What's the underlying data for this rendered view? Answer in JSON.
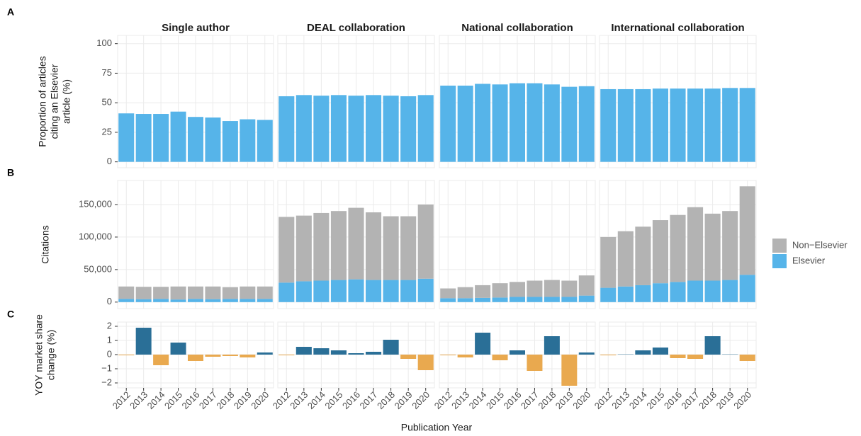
{
  "chart_data": [
    {
      "type": "bar",
      "panel_label": "A",
      "ylabel": [
        "Proportion of articles",
        "citing an Elsevier",
        "article (%)"
      ],
      "facet_titles": [
        "Single author",
        "DEAL collaboration",
        "National collaboration",
        "International collaboration"
      ],
      "categories": [
        "2012",
        "2013",
        "2014",
        "2015",
        "2016",
        "2017",
        "2018",
        "2019",
        "2020"
      ],
      "ylim": [
        -5,
        107
      ],
      "yticks": [
        0,
        25,
        50,
        75,
        100
      ],
      "grid": true,
      "color": "#56b4e9",
      "facets": [
        [
          41,
          40.5,
          40.5,
          42.5,
          38,
          37.5,
          34.5,
          36,
          35.5
        ],
        [
          55.5,
          56.5,
          56,
          56.5,
          56,
          56.5,
          56,
          55.5,
          56.5
        ],
        [
          64.5,
          64.5,
          66,
          65.5,
          66.5,
          66.5,
          65.5,
          63.5,
          64
        ],
        [
          61.5,
          61.5,
          61.5,
          62,
          62,
          62,
          62,
          62.5,
          62.5
        ]
      ]
    },
    {
      "type": "stacked_bar",
      "panel_label": "B",
      "ylabel": [
        "Citations"
      ],
      "categories": [
        "2012",
        "2013",
        "2014",
        "2015",
        "2016",
        "2017",
        "2018",
        "2019",
        "2020"
      ],
      "ylim": [
        -10000,
        187000
      ],
      "yticks": [
        0,
        {
          "value": 50000,
          "label": "50,000"
        },
        {
          "value": 100000,
          "label": "100,000"
        },
        {
          "value": 150000,
          "label": "150,000"
        }
      ],
      "grid": true,
      "legend": "right",
      "series": [
        {
          "name": "Non−Elsevier",
          "color": "#b3b3b3",
          "values": [
            [
              19000,
              19000,
              18500,
              20000,
              19000,
              19500,
              18000,
              19000,
              19000
            ],
            [
              101000,
              101000,
              104000,
              106000,
              110000,
              104000,
              98000,
              98000,
              114000
            ],
            [
              15000,
              17000,
              19500,
              22000,
              23000,
              25000,
              26000,
              25000,
              31000
            ],
            [
              78000,
              85000,
              90000,
              97000,
              103000,
              113000,
              103000,
              106000,
              136000
            ]
          ]
        },
        {
          "name": "Elsevier",
          "color": "#56b4e9",
          "values": [
            [
              5000,
              4500,
              5000,
              4000,
              5000,
              4500,
              5000,
              5000,
              5000
            ],
            [
              30000,
              32000,
              33000,
              34000,
              35000,
              34000,
              34000,
              34000,
              36000
            ],
            [
              6000,
              6000,
              6500,
              7000,
              8000,
              8000,
              8000,
              8000,
              10000
            ],
            [
              22000,
              24000,
              26000,
              29000,
              31000,
              33000,
              33000,
              34000,
              42000
            ]
          ]
        }
      ]
    },
    {
      "type": "diverging_bar",
      "panel_label": "C",
      "ylabel": [
        "YOY market share",
        "change (%)"
      ],
      "xlabel": "Publication Year",
      "categories": [
        "2012",
        "2013",
        "2014",
        "2015",
        "2016",
        "2017",
        "2018",
        "2019",
        "2020"
      ],
      "ylim": [
        -2.35,
        2.3
      ],
      "yticks": [
        {
          "value": -2,
          "label": "−2"
        },
        {
          "value": -1,
          "label": "−1"
        },
        0,
        1,
        2
      ],
      "grid": true,
      "positive_color": "#2a6f97",
      "negative_color": "#e9a94f",
      "facets": [
        [
          -0.05,
          1.9,
          -0.75,
          0.85,
          -0.45,
          -0.15,
          -0.1,
          -0.2,
          0.15
        ],
        [
          -0.05,
          0.55,
          0.45,
          0.3,
          0.1,
          0.2,
          1.05,
          -0.3,
          -1.1
        ],
        [
          -0.05,
          -0.2,
          1.55,
          -0.4,
          0.3,
          -1.15,
          1.3,
          -2.2,
          0.15
        ],
        [
          -0.05,
          0.02,
          0.3,
          0.5,
          -0.25,
          -0.3,
          1.3,
          0.02,
          -0.45
        ]
      ]
    }
  ]
}
